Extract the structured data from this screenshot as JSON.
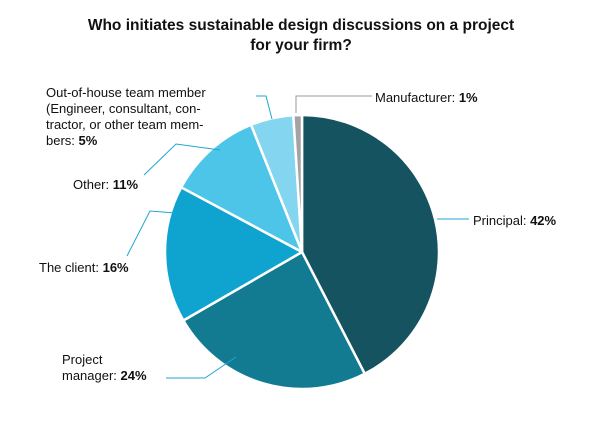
{
  "chart_data": {
    "type": "pie",
    "title_lines": [
      "Who initiates sustainable design discussions on a project",
      "for your firm?"
    ],
    "slices": [
      {
        "name": "Principal",
        "value": 42,
        "value_label": "42%",
        "color": "#155361"
      },
      {
        "name": "Project manager",
        "value": 24,
        "value_label": "24%",
        "color": "#127a91"
      },
      {
        "name": "The client",
        "value": 16,
        "value_label": "16%",
        "color": "#0fa3cf"
      },
      {
        "name": "Other",
        "value": 11,
        "value_label": "11%",
        "color": "#4cc5e8"
      },
      {
        "name": "Out-of-house team member (Engineer, consultant, contractor, or other team members)",
        "value": 5,
        "value_label": "5%",
        "color": "#84d5ef"
      },
      {
        "name": "Manufacturer",
        "value": 1,
        "value_label": "1%",
        "color": "#a3a3a3"
      }
    ],
    "label_lines": {
      "principal": [
        "Principal: "
      ],
      "project_manager": [
        "Project",
        "manager: "
      ],
      "client": [
        "The client: "
      ],
      "other": [
        "Other: "
      ],
      "out_of_house": [
        "Out-of-house team member",
        "(Engineer, consultant, con-",
        "tractor, or other team mem-",
        "bers: "
      ],
      "manufacturer": [
        "Manufacturer: "
      ]
    }
  }
}
